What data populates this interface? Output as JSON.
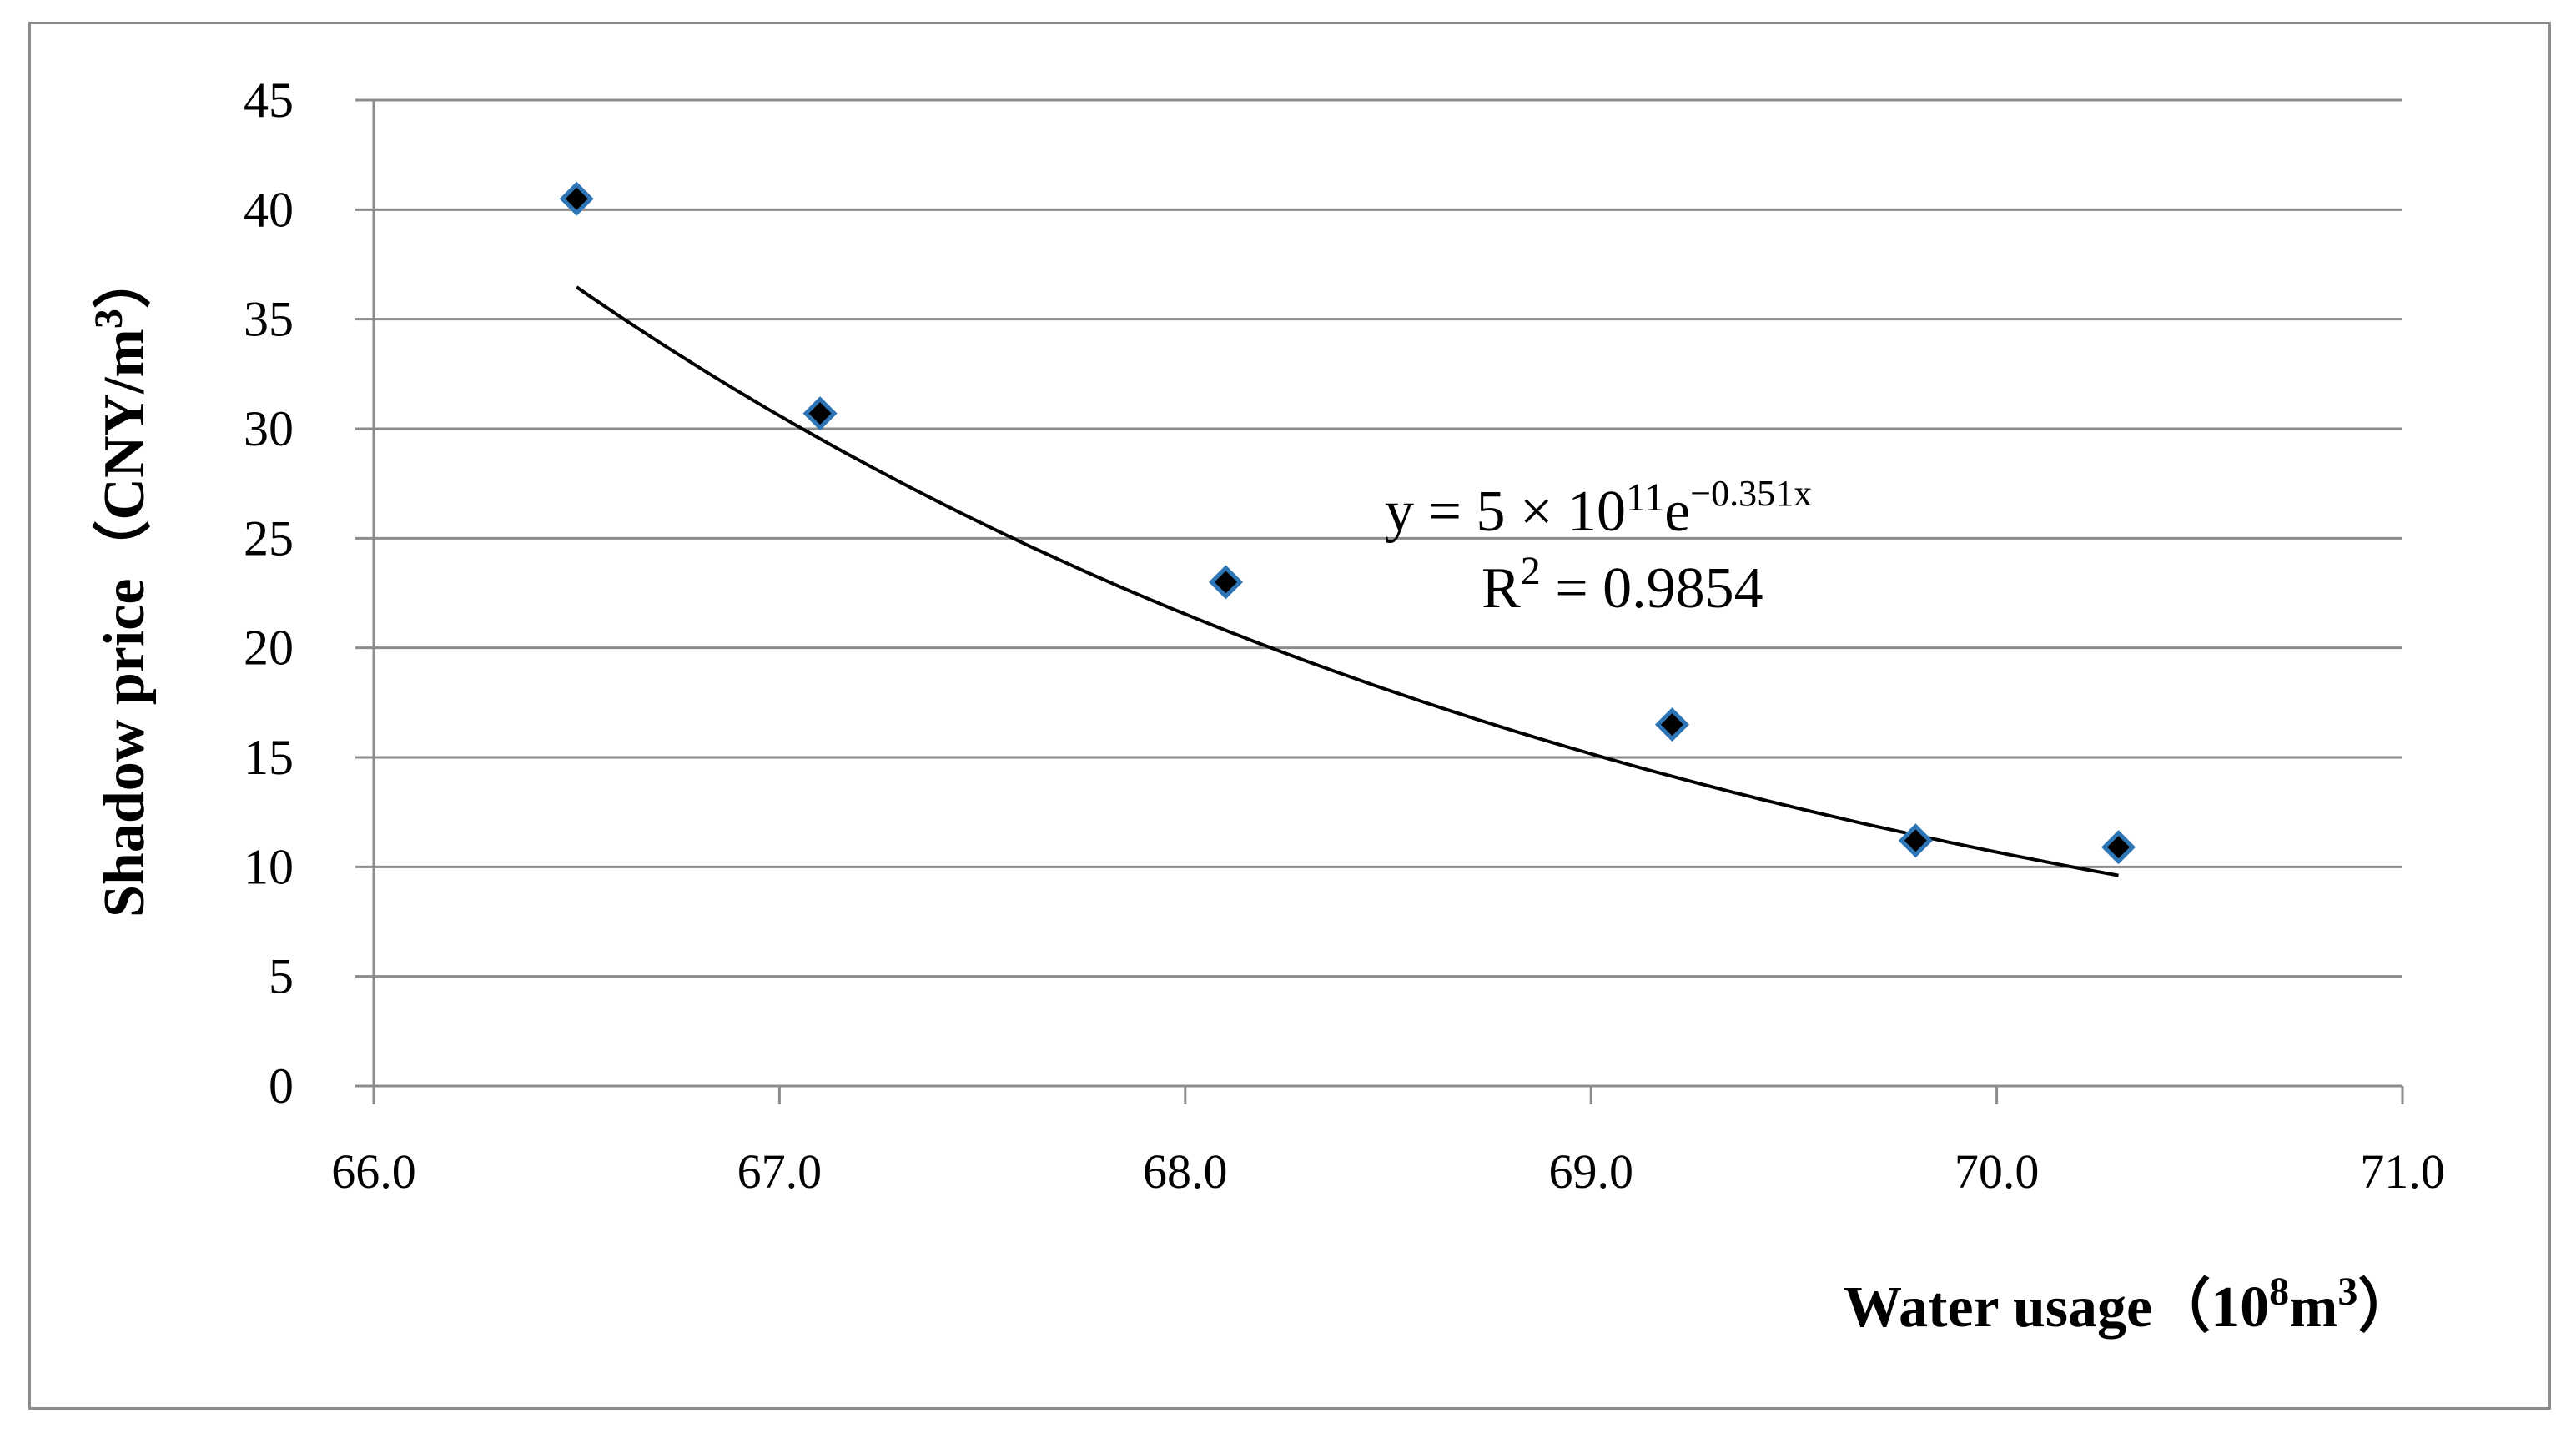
{
  "chart_data": {
    "type": "scatter",
    "title": "",
    "xlabel": "Water usage（10⁸m³）",
    "xlabel_parts": {
      "main": "Water usage（10",
      "sup1": "8",
      "mid": "m",
      "sup2": "3",
      "end": "）"
    },
    "ylabel": "Shadow price（CNY/m³）",
    "ylabel_parts": {
      "main": "Shadow price（CNY/m",
      "sup": "3",
      "end": "）"
    },
    "xlim": [
      66.0,
      71.0
    ],
    "ylim": [
      0,
      45
    ],
    "x_ticks": [
      "66.0",
      "67.0",
      "68.0",
      "69.0",
      "70.0",
      "71.0"
    ],
    "y_ticks": [
      "0",
      "5",
      "10",
      "15",
      "20",
      "25",
      "30",
      "35",
      "40",
      "45"
    ],
    "grid": "horizontal",
    "series": [
      {
        "name": "Shadow price",
        "x": [
          66.5,
          67.1,
          68.1,
          69.2,
          69.8,
          70.3
        ],
        "y": [
          40.5,
          30.7,
          23.0,
          16.5,
          11.2,
          10.9
        ]
      }
    ],
    "trendline": {
      "type": "exponential",
      "a": 500000000000.0,
      "b": -0.351,
      "x_range": [
        66.5,
        70.3
      ],
      "equation": {
        "prefix": "y = 5 × 10",
        "exp1": "11",
        "mid": "e",
        "exp2": "−0.351x",
        "r2_prefix": "R",
        "r2_sup": "2",
        "r2_value": " = 0.9854"
      }
    },
    "colors": {
      "marker_fill": "#000000",
      "marker_stroke": "#2e75b6",
      "trend": "#000000",
      "grid": "#8c8c8c"
    }
  }
}
